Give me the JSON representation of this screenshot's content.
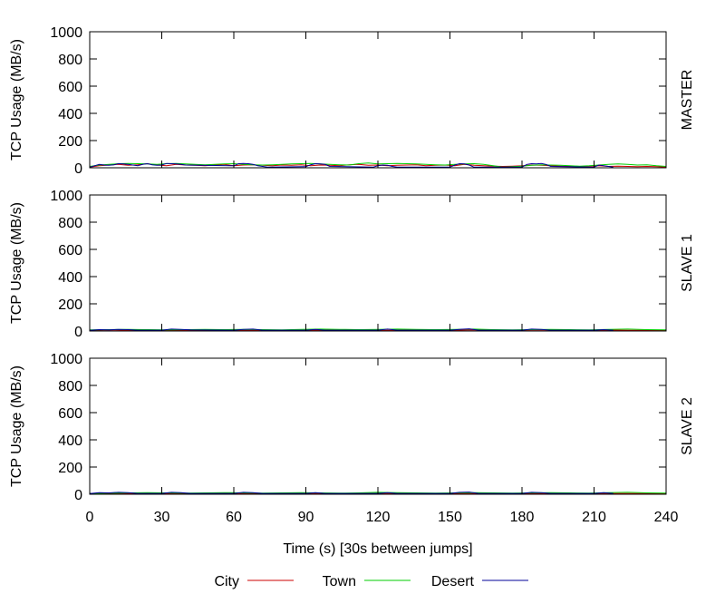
{
  "chart_data": {
    "type": "line",
    "xlabel": "Time (s) [30s between jumps]",
    "x_ticks": [
      0,
      30,
      60,
      90,
      120,
      150,
      180,
      210,
      240
    ],
    "xlim": [
      0,
      240
    ],
    "legend": {
      "placement": "bottom",
      "entries": [
        {
          "name": "City",
          "color": "#cc0000"
        },
        {
          "name": "Town",
          "color": "#00cc00"
        },
        {
          "name": "Desert",
          "color": "#000099"
        }
      ]
    },
    "grid": false,
    "panels": [
      {
        "title": "MASTER",
        "ylabel": "TCP Usage (MB/s)",
        "ylim": [
          0,
          1000
        ],
        "y_ticks": [
          0,
          200,
          400,
          600,
          800,
          1000
        ],
        "series": [
          {
            "name": "City",
            "color": "#cc0000",
            "x": [
              0,
              4,
              8,
              12,
              16,
              20,
              24,
              28,
              32,
              36,
              40,
              44,
              48,
              52,
              56,
              60,
              64,
              68,
              72,
              76,
              80,
              84,
              88,
              92,
              96,
              100,
              104,
              108,
              112,
              116,
              120,
              124,
              128,
              132,
              136,
              140,
              144,
              148,
              152,
              156,
              160,
              164,
              168,
              172,
              176,
              180,
              184,
              188,
              192,
              196,
              200,
              204,
              208,
              212,
              216,
              220,
              224,
              228,
              232,
              236,
              240
            ],
            "y": [
              5,
              15,
              20,
              25,
              18,
              22,
              30,
              20,
              15,
              25,
              20,
              18,
              15,
              20,
              25,
              15,
              20,
              22,
              18,
              15,
              20,
              18,
              22,
              15,
              20,
              18,
              15,
              22,
              25,
              18,
              20,
              15,
              18,
              20,
              22,
              15,
              18,
              20,
              15,
              25,
              18,
              15,
              12,
              10,
              12,
              15,
              20,
              18,
              15,
              12,
              10,
              8,
              12,
              15,
              10,
              12,
              10,
              8,
              10,
              8,
              5
            ]
          },
          {
            "name": "Town",
            "color": "#00cc00",
            "x": [
              0,
              4,
              8,
              12,
              16,
              20,
              24,
              28,
              32,
              36,
              40,
              44,
              48,
              52,
              56,
              60,
              64,
              68,
              72,
              76,
              80,
              84,
              88,
              92,
              96,
              100,
              104,
              108,
              112,
              116,
              120,
              124,
              128,
              132,
              136,
              140,
              144,
              148,
              152,
              156,
              160,
              164,
              168,
              172,
              176,
              180,
              184,
              188,
              192,
              196,
              200,
              204,
              208,
              212,
              216,
              220,
              224,
              228,
              232,
              236,
              240
            ],
            "y": [
              10,
              20,
              25,
              30,
              32,
              30,
              28,
              25,
              30,
              32,
              28,
              25,
              22,
              25,
              28,
              30,
              25,
              22,
              20,
              22,
              25,
              28,
              30,
              32,
              28,
              25,
              22,
              20,
              30,
              35,
              28,
              30,
              32,
              30,
              28,
              25,
              22,
              20,
              25,
              28,
              30,
              25,
              15,
              5,
              8,
              12,
              18,
              22,
              20,
              18,
              15,
              12,
              15,
              20,
              25,
              28,
              25,
              20,
              22,
              15,
              10
            ]
          },
          {
            "name": "Desert",
            "color": "#000099",
            "x": [
              0,
              2,
              4,
              6,
              8,
              10,
              12,
              14,
              16,
              18,
              20,
              22,
              24,
              26,
              28,
              30,
              32,
              34,
              36,
              38,
              40,
              60,
              62,
              64,
              66,
              68,
              70,
              72,
              74,
              90,
              92,
              94,
              96,
              98,
              100,
              118,
              120,
              122,
              124,
              126,
              128,
              150,
              152,
              154,
              156,
              158,
              160,
              180,
              182,
              184,
              186,
              188,
              190,
              192,
              210,
              212,
              214,
              216,
              218
            ],
            "y": [
              5,
              15,
              25,
              20,
              18,
              22,
              30,
              28,
              25,
              20,
              15,
              25,
              30,
              22,
              18,
              20,
              32,
              30,
              28,
              25,
              20,
              15,
              30,
              32,
              30,
              25,
              15,
              10,
              5,
              8,
              22,
              30,
              28,
              25,
              10,
              5,
              15,
              20,
              18,
              10,
              5,
              5,
              20,
              30,
              28,
              20,
              5,
              5,
              25,
              30,
              28,
              32,
              25,
              10,
              5,
              20,
              15,
              10,
              5
            ]
          }
        ]
      },
      {
        "title": "SLAVE 1",
        "ylabel": "TCP Usage (MB/s)",
        "ylim": [
          0,
          1000
        ],
        "y_ticks": [
          0,
          200,
          400,
          600,
          800,
          1000
        ],
        "series": [
          {
            "name": "City",
            "color": "#cc0000",
            "x": [
              0,
              8,
              16,
              24,
              32,
              40,
              48,
              56,
              64,
              72,
              80,
              88,
              96,
              104,
              112,
              120,
              128,
              136,
              144,
              152,
              160,
              168,
              176,
              184,
              192,
              200,
              208,
              216,
              224,
              232,
              240
            ],
            "y": [
              5,
              8,
              6,
              8,
              5,
              7,
              6,
              8,
              5,
              7,
              6,
              5,
              7,
              6,
              8,
              5,
              6,
              7,
              5,
              6,
              8,
              5,
              6,
              7,
              8,
              5,
              6,
              7,
              5,
              6,
              4
            ]
          },
          {
            "name": "Town",
            "color": "#00cc00",
            "x": [
              0,
              8,
              16,
              24,
              32,
              40,
              48,
              56,
              64,
              72,
              80,
              88,
              96,
              104,
              112,
              120,
              128,
              136,
              144,
              152,
              160,
              168,
              176,
              184,
              192,
              200,
              208,
              216,
              224,
              232,
              240
            ],
            "y": [
              8,
              10,
              12,
              10,
              8,
              10,
              12,
              10,
              12,
              10,
              8,
              12,
              14,
              12,
              10,
              12,
              14,
              12,
              10,
              12,
              14,
              10,
              8,
              10,
              12,
              10,
              8,
              12,
              14,
              10,
              8
            ]
          },
          {
            "name": "Desert",
            "color": "#000099",
            "x": [
              0,
              4,
              8,
              12,
              16,
              20,
              30,
              34,
              38,
              42,
              60,
              64,
              68,
              72,
              90,
              94,
              98,
              120,
              124,
              128,
              150,
              154,
              158,
              162,
              180,
              184,
              188,
              192,
              210,
              214,
              218
            ],
            "y": [
              5,
              10,
              8,
              12,
              10,
              6,
              6,
              14,
              12,
              8,
              6,
              12,
              14,
              6,
              6,
              12,
              6,
              6,
              14,
              6,
              6,
              12,
              16,
              6,
              6,
              14,
              12,
              6,
              6,
              10,
              6
            ]
          }
        ]
      },
      {
        "title": "SLAVE 2",
        "ylabel": "TCP Usage (MB/s)",
        "ylim": [
          0,
          1000
        ],
        "y_ticks": [
          0,
          200,
          400,
          600,
          800,
          1000
        ],
        "series": [
          {
            "name": "City",
            "color": "#cc0000",
            "x": [
              0,
              8,
              16,
              24,
              32,
              40,
              48,
              56,
              64,
              72,
              80,
              88,
              96,
              104,
              112,
              120,
              128,
              136,
              144,
              152,
              160,
              168,
              176,
              184,
              192,
              200,
              208,
              216,
              224,
              232,
              240
            ],
            "y": [
              4,
              6,
              5,
              7,
              5,
              6,
              5,
              7,
              5,
              6,
              5,
              6,
              7,
              5,
              6,
              5,
              6,
              7,
              5,
              6,
              5,
              6,
              7,
              5,
              6,
              5,
              7,
              6,
              5,
              6,
              4
            ]
          },
          {
            "name": "Town",
            "color": "#00cc00",
            "x": [
              0,
              8,
              16,
              24,
              32,
              40,
              48,
              56,
              64,
              72,
              80,
              88,
              96,
              104,
              112,
              120,
              128,
              136,
              144,
              152,
              160,
              168,
              176,
              184,
              192,
              200,
              208,
              216,
              224,
              232,
              240
            ],
            "y": [
              6,
              8,
              10,
              12,
              10,
              8,
              10,
              12,
              10,
              8,
              10,
              12,
              10,
              8,
              10,
              14,
              12,
              10,
              8,
              10,
              12,
              10,
              8,
              10,
              12,
              10,
              8,
              12,
              14,
              10,
              8
            ]
          },
          {
            "name": "Desert",
            "color": "#000099",
            "x": [
              0,
              4,
              8,
              12,
              16,
              20,
              30,
              34,
              38,
              42,
              60,
              64,
              68,
              72,
              90,
              94,
              98,
              120,
              124,
              128,
              150,
              154,
              158,
              162,
              180,
              184,
              188,
              192,
              210,
              214,
              218
            ],
            "y": [
              5,
              12,
              10,
              14,
              12,
              6,
              6,
              14,
              12,
              6,
              6,
              14,
              12,
              6,
              6,
              12,
              6,
              6,
              12,
              6,
              6,
              14,
              16,
              6,
              6,
              14,
              12,
              6,
              6,
              12,
              6
            ]
          }
        ]
      }
    ]
  }
}
